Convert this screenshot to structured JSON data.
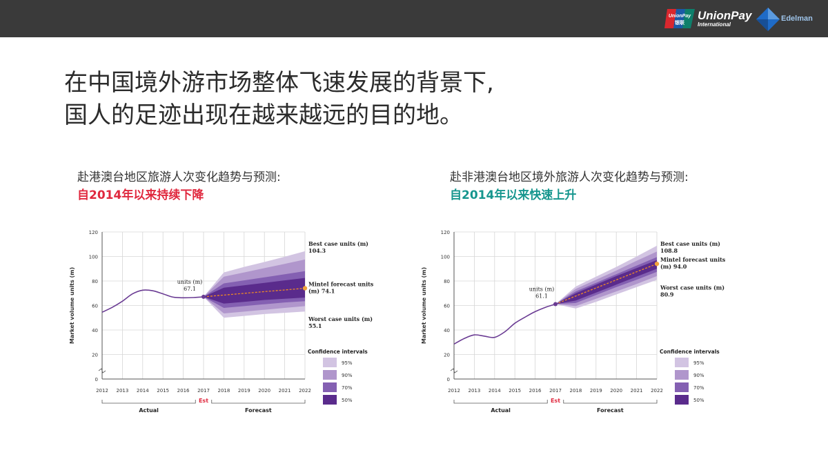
{
  "header": {
    "brand": {
      "logo_line1": "UnionPay",
      "logo_line2": "银联",
      "name": "UnionPay",
      "subtitle": "International"
    },
    "partner": "Edelman",
    "colors": {
      "bar": "#3a3a3a",
      "unionpay_red": "#d9272e",
      "unionpay_blue": "#1a5aa6",
      "unionpay_green": "#0e7f6b",
      "edelman_blue": "#1f6bc6"
    }
  },
  "headline": {
    "line1": "在中国境外游市场整体飞速发展的背景下,",
    "line2": "国人的足迹出现在越来越远的目的地。"
  },
  "left": {
    "title": "赴港澳台地区旅游人次变化趋势与预测:",
    "subtitle": "自2014年以来持续下降",
    "subtitle_color": "#e0283e"
  },
  "right": {
    "title": "赴非港澳台地区境外旅游人次变化趋势与预测:",
    "subtitle": "自2014年以来快速上升",
    "subtitle_color": "#16968e"
  },
  "chart_data": [
    {
      "type": "line",
      "ylabel": "Market volume units (m)",
      "ylim": [
        0,
        120
      ],
      "yticks": [
        "0",
        "20",
        "40",
        "60",
        "80",
        "100",
        "120"
      ],
      "x_labels": [
        "2012",
        "2013",
        "2014",
        "2015",
        "2016",
        "2017",
        "2018",
        "2019",
        "2020",
        "2021",
        "2022"
      ],
      "est_label": "Est",
      "actual_label": "Actual",
      "forecast_label": "Forecast",
      "actual": {
        "x": [
          2012,
          2012.5,
          2013,
          2013.5,
          2014,
          2014.5,
          2015,
          2015.5,
          2016,
          2016.5,
          2017
        ],
        "y": [
          54.5,
          58.5,
          63.5,
          69.5,
          72.5,
          72.0,
          69.5,
          66.8,
          66.3,
          66.5,
          67.1
        ]
      },
      "forecast": {
        "x": [
          2017,
          2018,
          2019,
          2020,
          2021,
          2022
        ],
        "y": [
          67.1,
          68.5,
          69.9,
          71.3,
          72.7,
          74.1
        ]
      },
      "bands": [
        {
          "level": "95%",
          "upper": [
            67.1,
            87.0,
            91.5,
            95.5,
            99.8,
            104.3
          ],
          "lower": [
            67.1,
            50.0,
            51.5,
            53.0,
            54.0,
            55.1
          ]
        },
        {
          "level": "90%",
          "upper": [
            67.1,
            83.5,
            87.0,
            90.5,
            94.0,
            97.5
          ],
          "lower": [
            67.1,
            53.5,
            55.0,
            56.5,
            58.0,
            59.5
          ]
        },
        {
          "level": "70%",
          "upper": [
            67.1,
            78.0,
            80.5,
            83.0,
            85.5,
            88.0
          ],
          "lower": [
            67.1,
            58.0,
            59.5,
            61.0,
            62.5,
            63.5
          ]
        },
        {
          "level": "50%",
          "upper": [
            67.1,
            74.5,
            76.5,
            78.5,
            80.5,
            82.5
          ],
          "lower": [
            67.1,
            61.5,
            63.0,
            64.5,
            65.5,
            66.5
          ]
        }
      ],
      "est_point": {
        "label": "units (m)",
        "value": "67.1"
      },
      "annotations": {
        "best": {
          "label": "Best case units (m)",
          "value": "104.3"
        },
        "mintel": {
          "label1": "Mintel forecast units",
          "label2": "(m) 74.1"
        },
        "worst": {
          "label": "Worst case units (m)",
          "value": "55.1"
        }
      },
      "legend": {
        "title": "Confidence intervals",
        "items": [
          "95%",
          "90%",
          "70%",
          "50%"
        ]
      }
    },
    {
      "type": "line",
      "ylabel": "Market volume units (m)",
      "ylim": [
        0,
        120
      ],
      "yticks": [
        "0",
        "20",
        "40",
        "60",
        "80",
        "100",
        "120"
      ],
      "x_labels": [
        "2012",
        "2013",
        "2014",
        "2015",
        "2016",
        "2017",
        "2018",
        "2019",
        "2020",
        "2021",
        "2022"
      ],
      "est_label": "Est",
      "actual_label": "Actual",
      "forecast_label": "Forecast",
      "actual": {
        "x": [
          2012,
          2012.5,
          2013,
          2013.5,
          2014,
          2014.5,
          2015,
          2015.5,
          2016,
          2016.5,
          2017
        ],
        "y": [
          28.5,
          33.0,
          36.0,
          35.0,
          34.0,
          38.5,
          45.5,
          50.5,
          55.0,
          58.5,
          61.1
        ]
      },
      "forecast": {
        "x": [
          2017,
          2018,
          2019,
          2020,
          2021,
          2022
        ],
        "y": [
          61.1,
          67.7,
          74.3,
          80.9,
          87.5,
          94.0
        ]
      },
      "bands": [
        {
          "level": "95%",
          "upper": [
            61.1,
            75.5,
            83.5,
            91.5,
            100.0,
            108.8
          ],
          "lower": [
            61.1,
            57.5,
            63.0,
            69.0,
            75.0,
            80.9
          ]
        },
        {
          "level": "90%",
          "upper": [
            61.1,
            73.5,
            81.0,
            88.5,
            96.5,
            104.0
          ],
          "lower": [
            61.1,
            59.5,
            65.5,
            71.5,
            77.5,
            84.0
          ]
        },
        {
          "level": "70%",
          "upper": [
            61.1,
            71.5,
            78.5,
            85.5,
            92.5,
            99.5
          ],
          "lower": [
            61.1,
            62.0,
            68.5,
            75.0,
            81.0,
            87.5
          ]
        },
        {
          "level": "50%",
          "upper": [
            61.1,
            70.0,
            77.0,
            84.0,
            90.5,
            97.0
          ],
          "lower": [
            61.1,
            64.0,
            70.5,
            77.0,
            83.5,
            90.0
          ]
        }
      ],
      "est_point": {
        "label": "units (m)",
        "value": "61.1"
      },
      "annotations": {
        "best": {
          "label": "Best case units (m)",
          "value": "108.8"
        },
        "mintel": {
          "label1": "Mintel forecast units",
          "label2": "(m) 94.0"
        },
        "worst": {
          "label": "Worst case units (m)",
          "value": "80.9"
        }
      },
      "legend": {
        "title": "Confidence intervals",
        "items": [
          "95%",
          "90%",
          "70%",
          "50%"
        ]
      }
    }
  ],
  "style": {
    "line": "#6a3b93",
    "forecast_line": "#f08a24",
    "endpoint": "#f0a23c",
    "band_colors": [
      "#d2c4e2",
      "#b096cc",
      "#8460b2",
      "#5a2b8c"
    ],
    "grid": "#d6d6d6",
    "est_color": "#e0283e"
  }
}
